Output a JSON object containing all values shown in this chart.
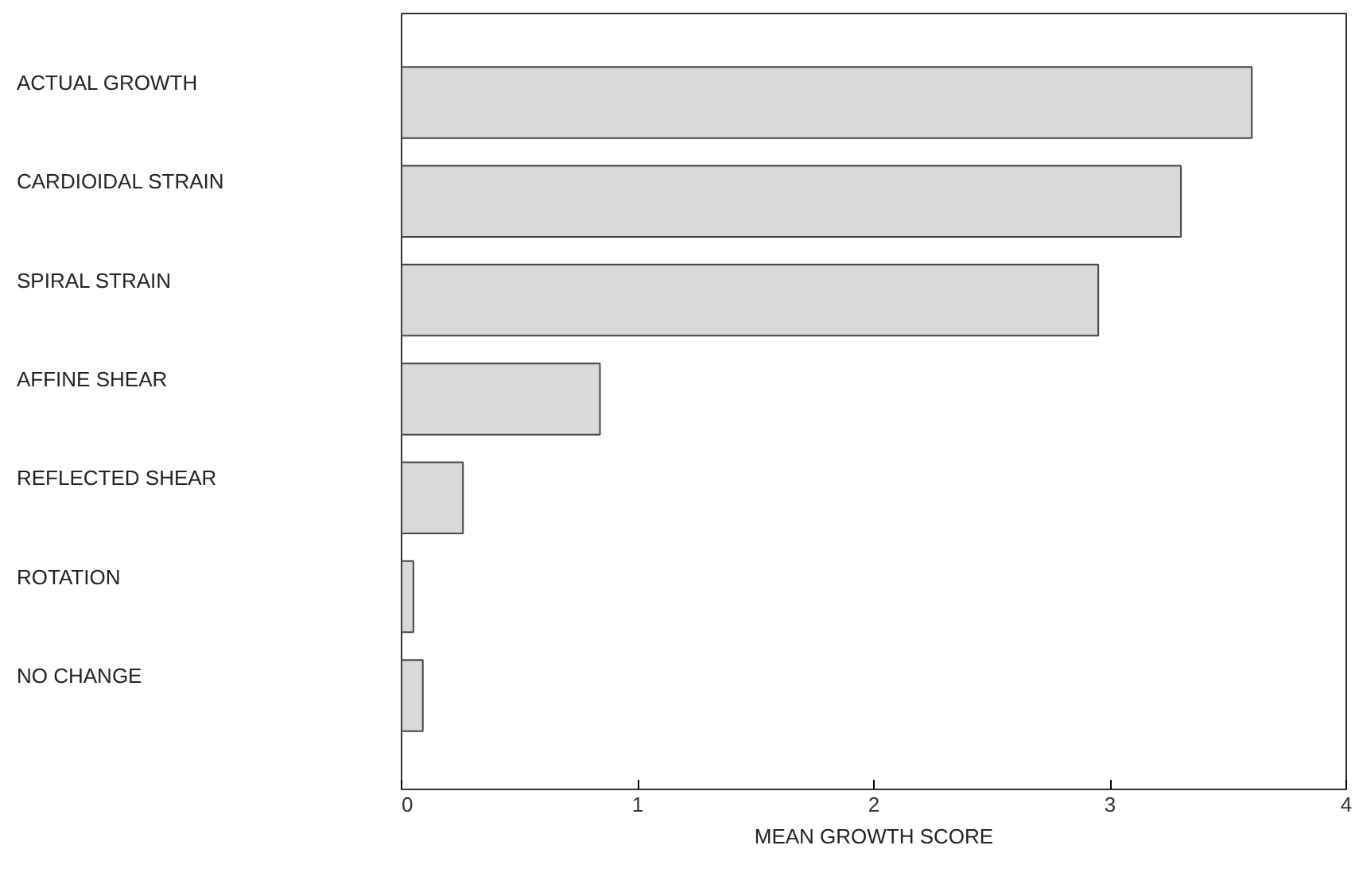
{
  "chart_data": {
    "type": "bar",
    "orientation": "horizontal",
    "xlabel": "MEAN GROWTH SCORE",
    "categories": [
      "ACTUAL GROWTH",
      "CARDIOIDAL STRAIN",
      "SPIRAL STRAIN",
      "AFFINE SHEAR",
      "REFLECTED SHEAR",
      "ROTATION",
      "NO CHANGE"
    ],
    "values": [
      3.6,
      3.3,
      2.95,
      0.84,
      0.26,
      0.05,
      0.09
    ],
    "color": "#d9d9d9",
    "xlim": [
      0,
      4
    ],
    "xticks": [
      0,
      1,
      2,
      3,
      4
    ],
    "grid": false
  }
}
